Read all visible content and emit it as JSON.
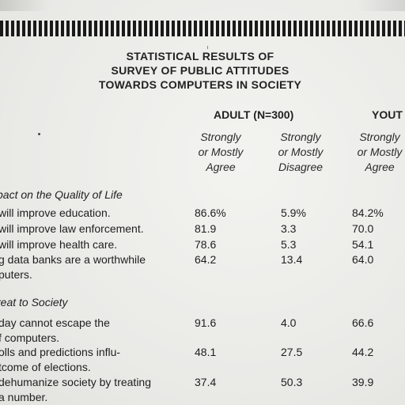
{
  "title_lines": [
    "STATISTICAL RESULTS OF",
    "SURVEY OF PUBLIC ATTITUDES",
    "TOWARDS COMPUTERS IN SOCIETY"
  ],
  "groups": {
    "adult": "ADULT (N=300)",
    "youth": "YOUT"
  },
  "column_headers": [
    [
      "Strongly",
      "or Mostly",
      "Agree"
    ],
    [
      "Strongly",
      "or Mostly",
      "Disagree"
    ],
    [
      "Strongly",
      "or Mostly",
      "Agree"
    ]
  ],
  "sections": [
    {
      "title": "pact on the Quality of Life",
      "rows": [
        {
          "label": [
            "will improve education."
          ],
          "values": [
            "86.6%",
            "5.9%",
            "84.2%"
          ]
        },
        {
          "label": [
            "will improve law enforcement."
          ],
          "values": [
            "81.9",
            "3.3",
            "70.0"
          ]
        },
        {
          "label": [
            "will improve health care."
          ],
          "values": [
            "78.6",
            "5.3",
            "54.1"
          ]
        },
        {
          "label": [
            "g data banks are a worthwhile",
            "puters."
          ],
          "values": [
            "64.2",
            "13.4",
            "64.0"
          ]
        }
      ]
    },
    {
      "title": "reat to Society",
      "rows": [
        {
          "label": [
            "day cannot escape the",
            "f computers."
          ],
          "values": [
            "91.6",
            "4.0",
            "66.6"
          ]
        },
        {
          "label": [
            "olls and predictions influ-",
            "tcome of elections."
          ],
          "values": [
            "48.1",
            "27.5",
            "44.2"
          ]
        },
        {
          "label": [
            "dehumanize society by treating",
            "a number."
          ],
          "values": [
            "37.4",
            "50.3",
            "39.9"
          ]
        }
      ]
    }
  ]
}
